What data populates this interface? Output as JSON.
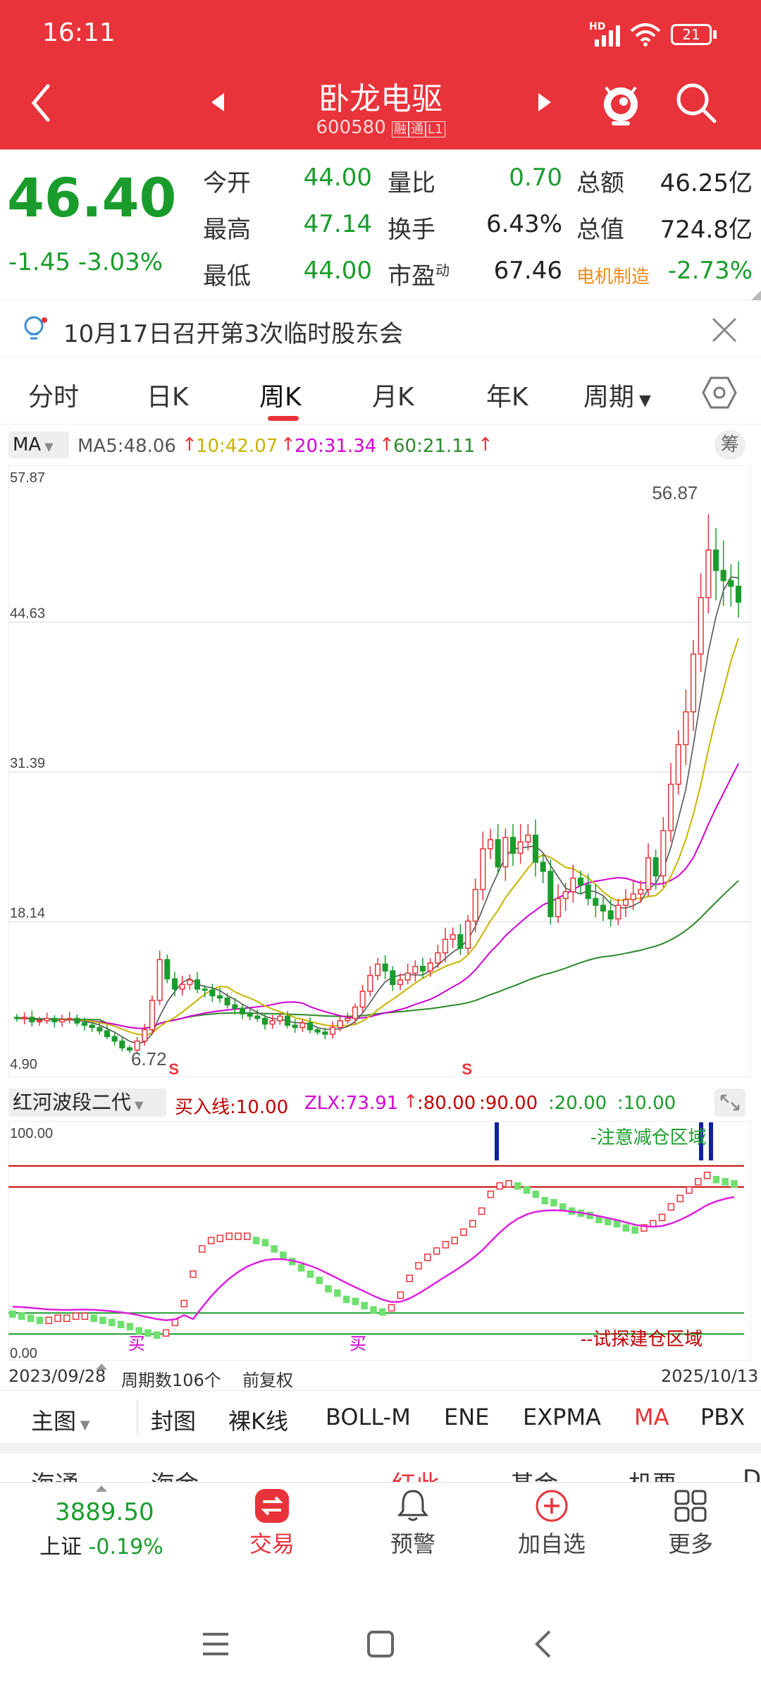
{
  "status_bar": {
    "time": "16:11",
    "network": "HD",
    "battery": "21"
  },
  "header": {
    "title": "卧龙电驱",
    "code": "600580",
    "badges": [
      "融",
      "通",
      "L1"
    ]
  },
  "quote": {
    "price": "46.40",
    "change": "-1.45",
    "change_pct": "-3.03%",
    "rows": [
      {
        "l1": "今开",
        "v1": "44.00",
        "l2": "量比",
        "v2": "0.70",
        "l3": "总额",
        "v3": "46.25亿"
      },
      {
        "l1": "最高",
        "v1": "47.14",
        "l2": "换手",
        "v2": "6.43%",
        "l3": "总值",
        "v3": "724.8亿"
      },
      {
        "l1": "最低",
        "v1": "44.00",
        "l2": "市盈",
        "l2_sup": "动",
        "v2": "67.46",
        "l3": "电机制造",
        "v3": "-2.73%"
      }
    ],
    "colors": {
      "up": "#e8333a",
      "down": "#1a9c2c"
    }
  },
  "notice": {
    "text": "10月17日召开第3次临时股东会"
  },
  "tabs": [
    {
      "label": "分时"
    },
    {
      "label": "日K"
    },
    {
      "label": "周K",
      "active": true
    },
    {
      "label": "月K"
    },
    {
      "label": "年K"
    },
    {
      "label": "周期"
    }
  ],
  "ma_row": {
    "selector": "MA",
    "ma5": "MA5:48.06",
    "ma10": "10:42.07",
    "ma20": "20:31.34",
    "ma60": "60:21.11",
    "chip_label": "筹"
  },
  "chart_data": [
    {
      "type": "candlestick",
      "y_ticks": [
        "57.87",
        "44.63",
        "31.39",
        "18.14",
        "4.90"
      ],
      "ylim": [
        4.9,
        57.87
      ],
      "high_label": "56.87",
      "low_label": "6.72",
      "signals": [
        "S",
        "S"
      ],
      "series_colors": {
        "ma5": "#555555",
        "ma10": "#c8b400",
        "ma20": "#d400d4",
        "ma60": "#2b8a2b"
      },
      "weekly_close_path": [
        9.6,
        9.7,
        9.3,
        9.4,
        9.6,
        9.3,
        9.5,
        9.6,
        9.2,
        9.0,
        8.8,
        8.5,
        8.0,
        7.6,
        7.0,
        6.8,
        7.6,
        8.6,
        11.2,
        14.8,
        13.1,
        12.2,
        12.6,
        13.0,
        12.2,
        12.1,
        11.6,
        11.4,
        10.8,
        10.5,
        10.0,
        9.8,
        9.6,
        9.1,
        9.4,
        9.8,
        9.0,
        8.8,
        9.2,
        8.6,
        8.4,
        8.2,
        8.8,
        9.4,
        9.6,
        10.6,
        12.0,
        13.4,
        14.4,
        13.8,
        12.6,
        13.0,
        13.6,
        14.2,
        13.8,
        14.5,
        15.4,
        16.6,
        17.0,
        15.8,
        18.2,
        21.0,
        24.6,
        25.4,
        23.0,
        25.6,
        24.2,
        25.2,
        25.8,
        23.4,
        22.6,
        18.6,
        20.2,
        20.8,
        22.0,
        21.4,
        20.2,
        19.6,
        19.1,
        18.4,
        19.6,
        20.1,
        20.6,
        21.0,
        23.8,
        22.2,
        26.2,
        30.3,
        33.8,
        36.7,
        41.8,
        46.8,
        51.0,
        49.2,
        48.3,
        47.8,
        46.4
      ],
      "marked_indices": [
        20,
        59
      ]
    },
    {
      "type": "indicator",
      "name": "红河波段二代",
      "ylim": [
        0,
        100
      ],
      "y_ticks": [
        "100.00",
        "0.00"
      ],
      "params": [
        "买入线:10.00",
        "ZLX:73.91",
        "↑",
        "80.00",
        "90.00",
        "20.00",
        "10.00"
      ],
      "levels": [
        80,
        90,
        20,
        10
      ],
      "zone_top": "-注意减仓区域",
      "zone_bottom": "--试探建仓区域",
      "buy_markers": [
        "买",
        "买"
      ],
      "x_labels": [
        "2023/09/28",
        "2025/10/13"
      ],
      "period_count": "周期数106个",
      "adjust": "前复权",
      "bars": [
        21,
        20,
        19,
        18,
        18,
        19,
        19,
        20,
        20,
        19,
        18,
        17,
        16,
        15,
        13,
        12,
        11,
        12,
        17,
        26,
        40,
        52,
        56,
        57,
        58,
        58,
        58,
        56,
        55,
        52,
        49,
        46,
        43,
        40,
        37,
        33,
        31,
        28,
        27,
        25,
        23,
        22,
        24,
        30,
        38,
        44,
        48,
        51,
        54,
        56,
        60,
        64,
        70,
        78,
        82,
        83,
        82,
        80,
        78,
        75,
        74,
        72,
        70,
        69,
        68,
        66,
        65,
        64,
        62,
        61,
        62,
        64,
        67,
        72,
        76,
        80,
        84,
        87,
        85,
        84,
        83
      ]
    }
  ],
  "tools": [
    "主图",
    "封图",
    "裸K线",
    "BOLL-M",
    "ENE",
    "EXPMA",
    "MA",
    "PBX"
  ],
  "cut_row": [
    "海通",
    "海金",
    "红此",
    "基金",
    "机要",
    "D"
  ],
  "bottom_nav": {
    "index_value": "3889.50",
    "index_name": "上证",
    "index_change": "-0.19%",
    "items": [
      {
        "label": "交易"
      },
      {
        "label": "预警"
      },
      {
        "label": "加自选"
      },
      {
        "label": "更多"
      }
    ]
  }
}
